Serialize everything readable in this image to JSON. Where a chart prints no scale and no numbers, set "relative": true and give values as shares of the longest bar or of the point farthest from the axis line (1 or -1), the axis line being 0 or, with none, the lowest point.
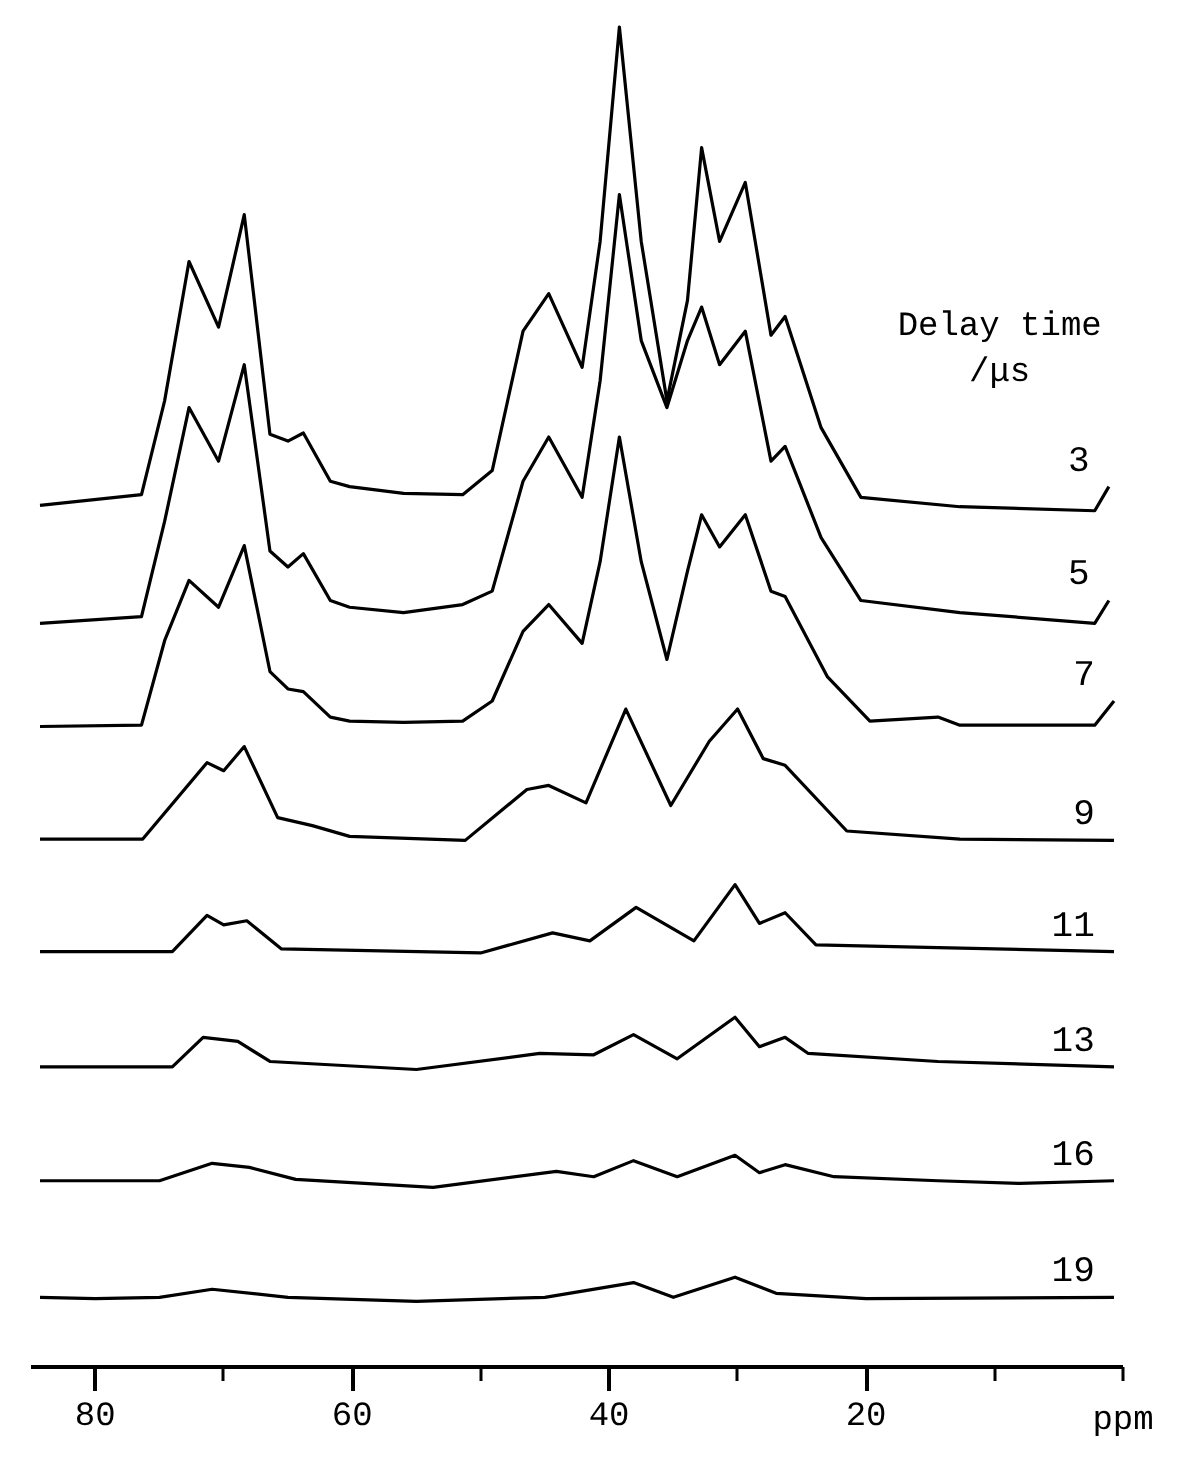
{
  "chart_data": {
    "type": "line",
    "relative": true,
    "xlabel": "ppm",
    "legend_title": "Delay time\n/μs",
    "xlim": [
      85,
      0
    ],
    "xticks": [
      80,
      60,
      40,
      20,
      {
        "value": 70,
        "label": null
      },
      {
        "value": 50,
        "label": null
      },
      {
        "value": 30,
        "label": null
      },
      {
        "value": 10,
        "label": null
      },
      {
        "value": 0,
        "label": null
      }
    ],
    "grid": false,
    "line_style": "solid",
    "marker": "none",
    "series": [
      {
        "name": "3",
        "color": "#000000",
        "x": [
          84.3,
          76.4,
          74.6,
          72.7,
          70.4,
          68.4,
          66.4,
          65.0,
          63.8,
          61.7,
          60.2,
          56.0,
          51.4,
          49.1,
          46.7,
          44.7,
          42.1,
          40.7,
          39.2,
          37.5,
          35.5,
          33.9,
          32.8,
          31.4,
          29.4,
          27.4,
          26.3,
          23.5,
          20.4,
          12.7,
          2.2,
          1.1
        ],
        "values": [
          0.643,
          0.651,
          0.721,
          0.825,
          0.776,
          0.86,
          0.696,
          0.691,
          0.697,
          0.661,
          0.657,
          0.652,
          0.651,
          0.669,
          0.773,
          0.801,
          0.746,
          0.84,
          1.0,
          0.84,
          0.721,
          0.796,
          0.91,
          0.84,
          0.884,
          0.77,
          0.784,
          0.701,
          0.649,
          0.642,
          0.639,
          0.657
        ]
      },
      {
        "name": "5",
        "color": "#000000",
        "x": [
          84.3,
          76.4,
          74.6,
          72.7,
          70.4,
          68.4,
          66.4,
          65.0,
          63.8,
          61.7,
          60.2,
          56.0,
          51.4,
          49.1,
          46.7,
          44.7,
          42.1,
          40.7,
          39.2,
          37.5,
          35.5,
          33.9,
          32.8,
          31.4,
          29.4,
          27.4,
          26.3,
          23.5,
          20.4,
          12.7,
          2.2,
          1.1
        ],
        "values": [
          0.555,
          0.56,
          0.631,
          0.716,
          0.676,
          0.748,
          0.609,
          0.597,
          0.607,
          0.572,
          0.567,
          0.563,
          0.569,
          0.579,
          0.661,
          0.694,
          0.649,
          0.736,
          0.875,
          0.766,
          0.716,
          0.766,
          0.791,
          0.748,
          0.773,
          0.676,
          0.687,
          0.619,
          0.572,
          0.563,
          0.555,
          0.572
        ]
      },
      {
        "name": "7",
        "color": "#000000",
        "x": [
          84.3,
          76.4,
          74.6,
          72.7,
          70.4,
          68.4,
          66.4,
          65.0,
          63.8,
          61.7,
          60.2,
          56.0,
          51.4,
          49.1,
          46.7,
          44.7,
          42.1,
          40.7,
          39.2,
          37.5,
          35.5,
          33.9,
          32.8,
          31.4,
          29.4,
          27.4,
          26.3,
          23.0,
          19.7,
          14.4,
          12.7,
          2.2,
          0.7
        ],
        "values": [
          0.478,
          0.479,
          0.542,
          0.587,
          0.567,
          0.613,
          0.519,
          0.506,
          0.504,
          0.485,
          0.482,
          0.481,
          0.482,
          0.497,
          0.549,
          0.569,
          0.54,
          0.601,
          0.694,
          0.601,
          0.528,
          0.594,
          0.636,
          0.612,
          0.636,
          0.579,
          0.575,
          0.515,
          0.482,
          0.485,
          0.479,
          0.479,
          0.497
        ]
      },
      {
        "name": "9",
        "color": "#000000",
        "x": [
          84.3,
          76.3,
          71.3,
          70.0,
          68.4,
          65.8,
          63.1,
          60.2,
          51.2,
          46.4,
          44.7,
          41.8,
          38.7,
          35.2,
          32.2,
          30.0,
          28.0,
          26.3,
          21.5,
          12.7,
          0.7
        ],
        "values": [
          0.394,
          0.394,
          0.451,
          0.445,
          0.463,
          0.41,
          0.404,
          0.396,
          0.393,
          0.431,
          0.434,
          0.421,
          0.491,
          0.419,
          0.467,
          0.491,
          0.454,
          0.449,
          0.4,
          0.394,
          0.393
        ]
      },
      {
        "name": "11",
        "color": "#000000",
        "x": [
          84.3,
          74.0,
          71.3,
          70.0,
          68.2,
          65.5,
          50.0,
          44.4,
          41.5,
          37.9,
          33.4,
          30.2,
          28.3,
          26.3,
          23.9,
          14.4,
          0.7
        ],
        "values": [
          0.31,
          0.31,
          0.337,
          0.33,
          0.333,
          0.312,
          0.309,
          0.324,
          0.318,
          0.343,
          0.318,
          0.36,
          0.331,
          0.339,
          0.315,
          0.313,
          0.31
        ]
      },
      {
        "name": "13",
        "color": "#000000",
        "x": [
          84.3,
          74.0,
          71.6,
          68.9,
          66.4,
          55.0,
          45.4,
          41.2,
          38.1,
          34.7,
          30.2,
          28.3,
          26.3,
          24.5,
          14.4,
          0.7
        ],
        "values": [
          0.224,
          0.224,
          0.246,
          0.243,
          0.228,
          0.222,
          0.234,
          0.233,
          0.248,
          0.23,
          0.261,
          0.239,
          0.246,
          0.234,
          0.228,
          0.224
        ]
      },
      {
        "name": "16",
        "color": "#000000",
        "x": [
          84.3,
          75.0,
          70.9,
          68.0,
          64.4,
          53.7,
          44.1,
          41.2,
          38.1,
          34.7,
          30.2,
          28.3,
          26.3,
          22.5,
          14.4,
          8.0,
          0.7
        ],
        "values": [
          0.139,
          0.139,
          0.152,
          0.149,
          0.14,
          0.134,
          0.146,
          0.142,
          0.154,
          0.142,
          0.158,
          0.145,
          0.151,
          0.142,
          0.139,
          0.137,
          0.139
        ]
      },
      {
        "name": "19",
        "color": "#000000",
        "x": [
          84.3,
          80.0,
          75.0,
          70.9,
          65.0,
          55.0,
          45.0,
          38.1,
          35.0,
          30.2,
          27.0,
          20.0,
          0.7
        ],
        "values": [
          0.052,
          0.051,
          0.052,
          0.058,
          0.052,
          0.049,
          0.052,
          0.063,
          0.052,
          0.067,
          0.055,
          0.051,
          0.052
        ]
      }
    ]
  }
}
